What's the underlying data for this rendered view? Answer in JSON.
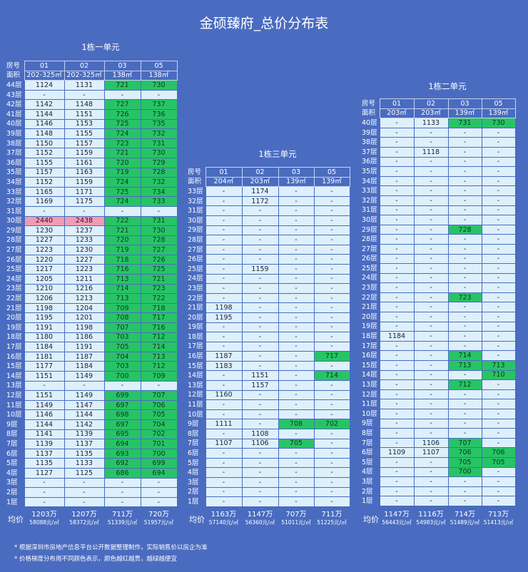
{
  "title": "金硕臻府_总价分布表",
  "labels": {
    "room": "房号",
    "area": "面积",
    "avg": "均价"
  },
  "units": [
    {
      "name": "1栋一单元",
      "rooms": [
        "01",
        "02",
        "03",
        "05"
      ],
      "areas": [
        "202-325㎡",
        "202-325㎡",
        "138㎡",
        "138㎡"
      ],
      "rows": [
        {
          "f": "44层",
          "v": [
            "1124",
            "1131",
            "721",
            "730"
          ]
        },
        {
          "f": "43层",
          "v": [
            "-",
            "-",
            "-",
            "-"
          ]
        },
        {
          "f": "42层",
          "v": [
            "1142",
            "1148",
            "727",
            "737"
          ]
        },
        {
          "f": "41层",
          "v": [
            "1144",
            "1151",
            "726",
            "736"
          ]
        },
        {
          "f": "40层",
          "v": [
            "1146",
            "1153",
            "725",
            "735"
          ]
        },
        {
          "f": "39层",
          "v": [
            "1148",
            "1155",
            "724",
            "732"
          ]
        },
        {
          "f": "38层",
          "v": [
            "1150",
            "1157",
            "723",
            "731"
          ]
        },
        {
          "f": "37层",
          "v": [
            "1152",
            "1159",
            "721",
            "730"
          ]
        },
        {
          "f": "36层",
          "v": [
            "1155",
            "1161",
            "720",
            "729"
          ]
        },
        {
          "f": "35层",
          "v": [
            "1157",
            "1163",
            "719",
            "728"
          ]
        },
        {
          "f": "34层",
          "v": [
            "1152",
            "1159",
            "724",
            "732"
          ]
        },
        {
          "f": "33层",
          "v": [
            "1165",
            "1171",
            "725",
            "734"
          ]
        },
        {
          "f": "32层",
          "v": [
            "1169",
            "1175",
            "724",
            "733"
          ]
        },
        {
          "f": "31层",
          "v": [
            "-",
            "-",
            "-",
            "-"
          ]
        },
        {
          "f": "30层",
          "v": [
            "2440",
            "2438",
            "722",
            "731"
          ]
        },
        {
          "f": "29层",
          "v": [
            "1230",
            "1237",
            "721",
            "730"
          ]
        },
        {
          "f": "28层",
          "v": [
            "1227",
            "1233",
            "720",
            "728"
          ]
        },
        {
          "f": "27层",
          "v": [
            "1223",
            "1230",
            "719",
            "727"
          ]
        },
        {
          "f": "26层",
          "v": [
            "1220",
            "1227",
            "718",
            "726"
          ]
        },
        {
          "f": "25层",
          "v": [
            "1217",
            "1223",
            "716",
            "725"
          ]
        },
        {
          "f": "24层",
          "v": [
            "1205",
            "1211",
            "713",
            "721"
          ]
        },
        {
          "f": "23层",
          "v": [
            "1210",
            "1216",
            "714",
            "723"
          ]
        },
        {
          "f": "22层",
          "v": [
            "1206",
            "1213",
            "713",
            "722"
          ]
        },
        {
          "f": "21层",
          "v": [
            "1198",
            "1204",
            "709",
            "718"
          ]
        },
        {
          "f": "20层",
          "v": [
            "1195",
            "1201",
            "708",
            "717"
          ]
        },
        {
          "f": "19层",
          "v": [
            "1191",
            "1198",
            "707",
            "716"
          ]
        },
        {
          "f": "18层",
          "v": [
            "1180",
            "1186",
            "703",
            "712"
          ]
        },
        {
          "f": "17层",
          "v": [
            "1184",
            "1191",
            "705",
            "714"
          ]
        },
        {
          "f": "16层",
          "v": [
            "1181",
            "1187",
            "704",
            "713"
          ]
        },
        {
          "f": "15层",
          "v": [
            "1177",
            "1184",
            "703",
            "712"
          ]
        },
        {
          "f": "14层",
          "v": [
            "1151",
            "1149",
            "700",
            "709"
          ]
        },
        {
          "f": "13层",
          "v": [
            "-",
            "-",
            "-",
            "-"
          ]
        },
        {
          "f": "12层",
          "v": [
            "1151",
            "1149",
            "699",
            "707"
          ]
        },
        {
          "f": "11层",
          "v": [
            "1149",
            "1147",
            "697",
            "706"
          ]
        },
        {
          "f": "10层",
          "v": [
            "1146",
            "1144",
            "698",
            "705"
          ]
        },
        {
          "f": "9层",
          "v": [
            "1144",
            "1142",
            "697",
            "704"
          ]
        },
        {
          "f": "8层",
          "v": [
            "1141",
            "1139",
            "695",
            "702"
          ]
        },
        {
          "f": "7层",
          "v": [
            "1139",
            "1137",
            "694",
            "701"
          ]
        },
        {
          "f": "6层",
          "v": [
            "1137",
            "1135",
            "693",
            "700"
          ]
        },
        {
          "f": "5层",
          "v": [
            "1135",
            "1133",
            "692",
            "699"
          ]
        },
        {
          "f": "4层",
          "v": [
            "1127",
            "1125",
            "686",
            "694"
          ]
        },
        {
          "f": "3层",
          "v": [
            "-",
            "-",
            "-",
            "-"
          ]
        },
        {
          "f": "2层",
          "v": [
            "-",
            "-",
            "-",
            "-"
          ]
        },
        {
          "f": "1层",
          "v": [
            "-",
            "-",
            "-",
            "-"
          ]
        }
      ],
      "green_cols": [
        2,
        3
      ],
      "pink": [
        [
          14,
          0
        ],
        [
          14,
          1
        ]
      ],
      "avg": [
        [
          "1203万",
          "58088元/㎡"
        ],
        [
          "1207万",
          "58372元/㎡"
        ],
        [
          "711万",
          "51339元/㎡"
        ],
        [
          "720万",
          "51957元/㎡"
        ]
      ]
    },
    {
      "name": "1栋三单元",
      "rooms": [
        "01",
        "02",
        "03",
        "05"
      ],
      "areas": [
        "204㎡",
        "203㎡",
        "139㎡",
        "139㎡"
      ],
      "rows": [
        {
          "f": "33层",
          "v": [
            "-",
            "1174",
            "-",
            "-"
          ]
        },
        {
          "f": "32层",
          "v": [
            "-",
            "1172",
            "-",
            "-"
          ]
        },
        {
          "f": "31层",
          "v": [
            "-",
            "-",
            "-",
            "-"
          ]
        },
        {
          "f": "30层",
          "v": [
            "-",
            "-",
            "-",
            "-"
          ]
        },
        {
          "f": "29层",
          "v": [
            "-",
            "-",
            "-",
            "-"
          ]
        },
        {
          "f": "28层",
          "v": [
            "-",
            "-",
            "-",
            "-"
          ]
        },
        {
          "f": "27层",
          "v": [
            "-",
            "-",
            "-",
            "-"
          ]
        },
        {
          "f": "26层",
          "v": [
            "-",
            "-",
            "-",
            "-"
          ]
        },
        {
          "f": "25层",
          "v": [
            "-",
            "1159",
            "-",
            "-"
          ]
        },
        {
          "f": "24层",
          "v": [
            "-",
            "-",
            "-",
            "-"
          ]
        },
        {
          "f": "23层",
          "v": [
            "-",
            "-",
            "-",
            "-"
          ]
        },
        {
          "f": "22层",
          "v": [
            "-",
            "-",
            "-",
            "-"
          ]
        },
        {
          "f": "21层",
          "v": [
            "1198",
            "-",
            "-",
            "-"
          ]
        },
        {
          "f": "20层",
          "v": [
            "1195",
            "-",
            "-",
            "-"
          ]
        },
        {
          "f": "19层",
          "v": [
            "-",
            "-",
            "-",
            "-"
          ]
        },
        {
          "f": "18层",
          "v": [
            "-",
            "-",
            "-",
            "-"
          ]
        },
        {
          "f": "17层",
          "v": [
            "-",
            "-",
            "-",
            "-"
          ]
        },
        {
          "f": "16层",
          "v": [
            "1187",
            "-",
            "-",
            "717"
          ]
        },
        {
          "f": "15层",
          "v": [
            "1183",
            "-",
            "-",
            "-"
          ]
        },
        {
          "f": "14层",
          "v": [
            "-",
            "1151",
            "-",
            "714"
          ]
        },
        {
          "f": "13层",
          "v": [
            "-",
            "1157",
            "-",
            "-"
          ]
        },
        {
          "f": "12层",
          "v": [
            "1160",
            "-",
            "-",
            "-"
          ]
        },
        {
          "f": "11层",
          "v": [
            "-",
            "-",
            "-",
            "-"
          ]
        },
        {
          "f": "10层",
          "v": [
            "-",
            "-",
            "-",
            "-"
          ]
        },
        {
          "f": "9层",
          "v": [
            "1111",
            "-",
            "708",
            "702"
          ]
        },
        {
          "f": "8层",
          "v": [
            "-",
            "1108",
            "-",
            "-"
          ]
        },
        {
          "f": "7层",
          "v": [
            "1107",
            "1106",
            "705",
            "-"
          ]
        },
        {
          "f": "6层",
          "v": [
            "-",
            "-",
            "-",
            "-"
          ]
        },
        {
          "f": "5层",
          "v": [
            "-",
            "-",
            "-",
            "-"
          ]
        },
        {
          "f": "4层",
          "v": [
            "-",
            "-",
            "-",
            "-"
          ]
        },
        {
          "f": "3层",
          "v": [
            "-",
            "-",
            "-",
            "-"
          ]
        },
        {
          "f": "2层",
          "v": [
            "-",
            "-",
            "-",
            "-"
          ]
        },
        {
          "f": "1层",
          "v": [
            "-",
            "-",
            "-",
            "-"
          ]
        }
      ],
      "green_cols": [],
      "green_cells": [
        [
          17,
          3
        ],
        [
          19,
          3
        ],
        [
          24,
          2
        ],
        [
          24,
          3
        ],
        [
          26,
          2
        ]
      ],
      "pink": [],
      "avg": [
        [
          "1163万",
          "57140元/㎡"
        ],
        [
          "1147万",
          "56360元/㎡"
        ],
        [
          "707万",
          "51011元/㎡"
        ],
        [
          "711万",
          "51225元/㎡"
        ]
      ]
    },
    {
      "name": "1栋二单元",
      "rooms": [
        "01",
        "02",
        "03",
        "05"
      ],
      "areas": [
        "203㎡",
        "203㎡",
        "139㎡",
        "139㎡"
      ],
      "rows": [
        {
          "f": "40层",
          "v": [
            "-",
            "1133",
            "731",
            "730"
          ]
        },
        {
          "f": "39层",
          "v": [
            "-",
            "-",
            "-",
            "-"
          ]
        },
        {
          "f": "38层",
          "v": [
            "-",
            "-",
            "-",
            "-"
          ]
        },
        {
          "f": "37层",
          "v": [
            "-",
            "1118",
            "-",
            "-"
          ]
        },
        {
          "f": "36层",
          "v": [
            "-",
            "-",
            "-",
            "-"
          ]
        },
        {
          "f": "35层",
          "v": [
            "-",
            "-",
            "-",
            "-"
          ]
        },
        {
          "f": "34层",
          "v": [
            "-",
            "-",
            "-",
            "-"
          ]
        },
        {
          "f": "33层",
          "v": [
            "-",
            "-",
            "-",
            "-"
          ]
        },
        {
          "f": "32层",
          "v": [
            "-",
            "-",
            "-",
            "-"
          ]
        },
        {
          "f": "31层",
          "v": [
            "-",
            "-",
            "-",
            "-"
          ]
        },
        {
          "f": "30层",
          "v": [
            "-",
            "-",
            "-",
            "-"
          ]
        },
        {
          "f": "29层",
          "v": [
            "-",
            "-",
            "728",
            "-"
          ]
        },
        {
          "f": "28层",
          "v": [
            "-",
            "-",
            "-",
            "-"
          ]
        },
        {
          "f": "27层",
          "v": [
            "-",
            "-",
            "-",
            "-"
          ]
        },
        {
          "f": "26层",
          "v": [
            "-",
            "-",
            "-",
            "-"
          ]
        },
        {
          "f": "25层",
          "v": [
            "-",
            "-",
            "-",
            "-"
          ]
        },
        {
          "f": "24层",
          "v": [
            "-",
            "-",
            "-",
            "-"
          ]
        },
        {
          "f": "23层",
          "v": [
            "-",
            "-",
            "-",
            "-"
          ]
        },
        {
          "f": "22层",
          "v": [
            "-",
            "-",
            "723",
            "-"
          ]
        },
        {
          "f": "21层",
          "v": [
            "-",
            "-",
            "-",
            "-"
          ]
        },
        {
          "f": "20层",
          "v": [
            "-",
            "-",
            "-",
            "-"
          ]
        },
        {
          "f": "19层",
          "v": [
            "-",
            "-",
            "-",
            "-"
          ]
        },
        {
          "f": "18层",
          "v": [
            "1184",
            "-",
            "-",
            "-"
          ]
        },
        {
          "f": "17层",
          "v": [
            "-",
            "-",
            "-",
            "-"
          ]
        },
        {
          "f": "16层",
          "v": [
            "-",
            "-",
            "714",
            "-"
          ]
        },
        {
          "f": "15层",
          "v": [
            "-",
            "-",
            "713",
            "713"
          ]
        },
        {
          "f": "14层",
          "v": [
            "-",
            "-",
            "-",
            "710"
          ]
        },
        {
          "f": "13层",
          "v": [
            "-",
            "-",
            "712",
            "-"
          ]
        },
        {
          "f": "12层",
          "v": [
            "-",
            "-",
            "-",
            "-"
          ]
        },
        {
          "f": "11层",
          "v": [
            "-",
            "-",
            "-",
            "-"
          ]
        },
        {
          "f": "10层",
          "v": [
            "-",
            "-",
            "-",
            "-"
          ]
        },
        {
          "f": "9层",
          "v": [
            "-",
            "-",
            "-",
            "-"
          ]
        },
        {
          "f": "8层",
          "v": [
            "-",
            "-",
            "-",
            "-"
          ]
        },
        {
          "f": "7层",
          "v": [
            "-",
            "1106",
            "707",
            "-"
          ]
        },
        {
          "f": "6层",
          "v": [
            "1109",
            "1107",
            "706",
            "706"
          ]
        },
        {
          "f": "5层",
          "v": [
            "-",
            "-",
            "705",
            "705"
          ]
        },
        {
          "f": "4层",
          "v": [
            "-",
            "-",
            "700",
            "-"
          ]
        },
        {
          "f": "3层",
          "v": [
            "-",
            "-",
            "-",
            "-"
          ]
        },
        {
          "f": "2层",
          "v": [
            "-",
            "-",
            "-",
            "-"
          ]
        },
        {
          "f": "1层",
          "v": [
            "-",
            "-",
            "-",
            "-"
          ]
        }
      ],
      "green_cols": [],
      "green_cells": [
        [
          0,
          2
        ],
        [
          0,
          3
        ],
        [
          11,
          2
        ],
        [
          18,
          2
        ],
        [
          24,
          2
        ],
        [
          25,
          2
        ],
        [
          25,
          3
        ],
        [
          26,
          3
        ],
        [
          27,
          2
        ],
        [
          33,
          2
        ],
        [
          34,
          2
        ],
        [
          34,
          3
        ],
        [
          35,
          2
        ],
        [
          35,
          3
        ],
        [
          36,
          2
        ]
      ],
      "pink": [],
      "avg": [
        [
          "1147万",
          "56443元/㎡"
        ],
        [
          "1116万",
          "54983元/㎡"
        ],
        [
          "714万",
          "51489元/㎡"
        ],
        [
          "713万",
          "51413元/㎡"
        ]
      ]
    }
  ],
  "footnotes": [
    "* 根据深圳市房地产信息平台公开数据整理制作，实际销售价以房企为准",
    "* 价格梯度分布用不同颜色表示，颜色越红越贵，越绿越便宜"
  ],
  "colors": {
    "background": "#4a6cc0",
    "cell": "#ddf0fb",
    "green": "#27c466",
    "pink": "#f19bb4"
  }
}
